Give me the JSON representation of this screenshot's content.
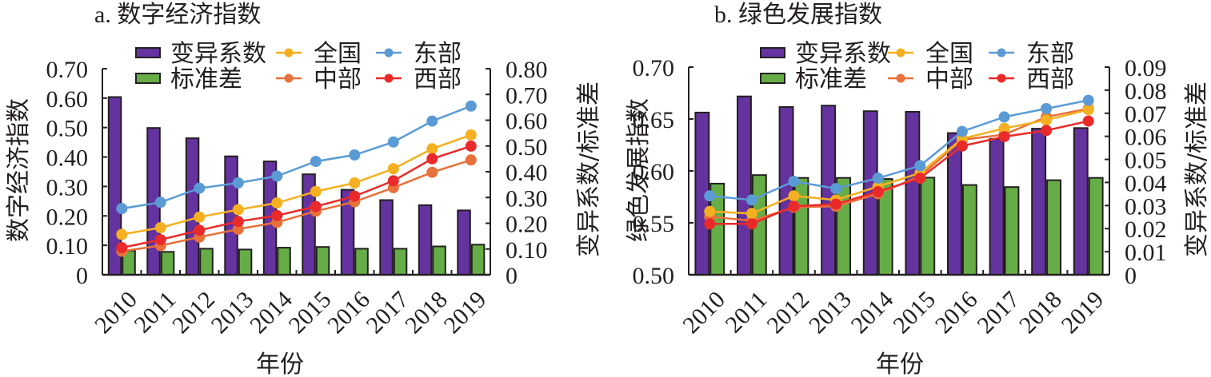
{
  "colors": {
    "cv": "#6533a0",
    "sd": "#67ad47",
    "national": "#f5b021",
    "east": "#5b9bd5",
    "central": "#e8703a",
    "west": "#ea2a2a",
    "axis": "#231f20"
  },
  "chart_data": [
    {
      "id": "a",
      "type": "bar+line",
      "title": "a. 数字经济指数",
      "xlabel": "年份",
      "ylabel": "数字经济指数",
      "ylabel_right": "变异系数/标准差",
      "categories": [
        "2010",
        "2011",
        "2012",
        "2013",
        "2014",
        "2015",
        "2016",
        "2017",
        "2018",
        "2019"
      ],
      "ylim": [
        0,
        0.7
      ],
      "yticks": [
        0,
        0.1,
        0.2,
        0.3,
        0.4,
        0.5,
        0.6,
        0.7
      ],
      "ytick_labels": [
        "0",
        "0.10",
        "0.20",
        "0.30",
        "0.40",
        "0.50",
        "0.60",
        "0.70"
      ],
      "ylim_right": [
        0,
        0.8
      ],
      "yticks_right": [
        0,
        0.1,
        0.2,
        0.3,
        0.4,
        0.5,
        0.6,
        0.7,
        0.8
      ],
      "ytick_labels_right": [
        "0",
        "0.10",
        "0.20",
        "0.30",
        "0.40",
        "0.50",
        "0.60",
        "0.70",
        "0.80"
      ],
      "legend_position": "top",
      "bar_series": [
        {
          "key": "cv",
          "name": "变异系数",
          "axis": "right",
          "values": [
            0.69,
            0.57,
            0.53,
            0.46,
            0.44,
            0.39,
            0.33,
            0.29,
            0.27,
            0.25
          ]
        },
        {
          "key": "sd",
          "name": "标准差",
          "axis": "right",
          "values": [
            0.094,
            0.089,
            0.101,
            0.098,
            0.105,
            0.108,
            0.101,
            0.101,
            0.11,
            0.117
          ]
        }
      ],
      "line_series": [
        {
          "key": "national",
          "name": "全国",
          "axis": "left",
          "values": [
            0.137,
            0.16,
            0.196,
            0.221,
            0.244,
            0.283,
            0.312,
            0.36,
            0.428,
            0.475
          ]
        },
        {
          "key": "east",
          "name": "东部",
          "axis": "left",
          "values": [
            0.225,
            0.246,
            0.294,
            0.312,
            0.335,
            0.385,
            0.407,
            0.451,
            0.522,
            0.573
          ]
        },
        {
          "key": "central",
          "name": "中部",
          "axis": "left",
          "values": [
            0.08,
            0.099,
            0.128,
            0.155,
            0.178,
            0.216,
            0.248,
            0.296,
            0.348,
            0.39
          ]
        },
        {
          "key": "west",
          "name": "西部",
          "axis": "left",
          "values": [
            0.092,
            0.119,
            0.151,
            0.181,
            0.201,
            0.232,
            0.267,
            0.319,
            0.394,
            0.437
          ]
        }
      ],
      "grid": false
    },
    {
      "id": "b",
      "type": "bar+line",
      "title": "b. 绿色发展指数",
      "xlabel": "年份",
      "ylabel": "绿色发展指数",
      "ylabel_right": "变异系数/标准差",
      "categories": [
        "2010",
        "2011",
        "2012",
        "2013",
        "2014",
        "2015",
        "2016",
        "2017",
        "2018",
        "2019"
      ],
      "ylim": [
        0.5,
        0.7
      ],
      "yticks": [
        0.5,
        0.55,
        0.6,
        0.65,
        0.7
      ],
      "ytick_labels": [
        "0.50",
        "0.55",
        "0.60",
        "0.65",
        "0.70"
      ],
      "ylim_right": [
        0,
        0.09
      ],
      "yticks_right": [
        0,
        0.01,
        0.02,
        0.03,
        0.04,
        0.05,
        0.06,
        0.07,
        0.08,
        0.09
      ],
      "ytick_labels_right": [
        "0",
        "0.01",
        "0.02",
        "0.03",
        "0.04",
        "0.05",
        "0.06",
        "0.07",
        "0.08",
        "0.09"
      ],
      "legend_position": "top",
      "bar_series": [
        {
          "key": "cv",
          "name": "变异系数",
          "axis": "right",
          "values": [
            0.0703,
            0.0773,
            0.0727,
            0.0733,
            0.0709,
            0.0706,
            0.0614,
            0.0589,
            0.0633,
            0.0636
          ]
        },
        {
          "key": "sd",
          "name": "标准差",
          "axis": "right",
          "values": [
            0.0395,
            0.0432,
            0.042,
            0.042,
            0.0415,
            0.0421,
            0.0389,
            0.038,
            0.041,
            0.042
          ]
        }
      ],
      "line_series": [
        {
          "key": "national",
          "name": "全国",
          "axis": "left",
          "values": [
            0.561,
            0.559,
            0.576,
            0.572,
            0.585,
            0.598,
            0.631,
            0.641,
            0.649,
            0.659
          ]
        },
        {
          "key": "east",
          "name": "东部",
          "axis": "left",
          "values": [
            0.576,
            0.572,
            0.59,
            0.583,
            0.593,
            0.605,
            0.638,
            0.652,
            0.66,
            0.668
          ]
        },
        {
          "key": "central",
          "name": "中部",
          "axis": "left",
          "values": [
            0.556,
            0.552,
            0.565,
            0.566,
            0.578,
            0.595,
            0.63,
            0.635,
            0.652,
            0.66
          ]
        },
        {
          "key": "west",
          "name": "西部",
          "axis": "left",
          "values": [
            0.549,
            0.549,
            0.566,
            0.568,
            0.58,
            0.593,
            0.624,
            0.633,
            0.639,
            0.648
          ]
        }
      ],
      "grid": false
    }
  ]
}
